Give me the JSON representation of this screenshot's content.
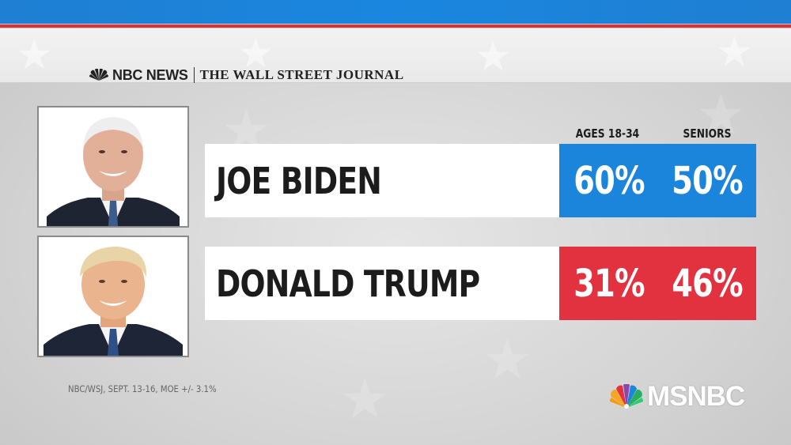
{
  "header": {
    "network_logo": "NBC NEWS",
    "partner_logo": "THE WALL STREET JOURNAL"
  },
  "columns": {
    "col1": "AGES 18-34",
    "col2": "SENIORS"
  },
  "candidates": [
    {
      "name": "JOE BIDEN",
      "ages_18_34": "60%",
      "seniors": "50%",
      "color": "#1b84db"
    },
    {
      "name": "DONALD TRUMP",
      "ages_18_34": "31%",
      "seniors": "46%",
      "color": "#e2323f"
    }
  ],
  "source": "NBC/WSJ, SEPT. 13-16, MOE +/- 3.1%",
  "channel_logo": "MSNBC",
  "colors": {
    "top_bar": "#1a86df",
    "red_line": "#d8323b",
    "biden_box": "#1b84db",
    "trump_box": "#e2323f"
  }
}
